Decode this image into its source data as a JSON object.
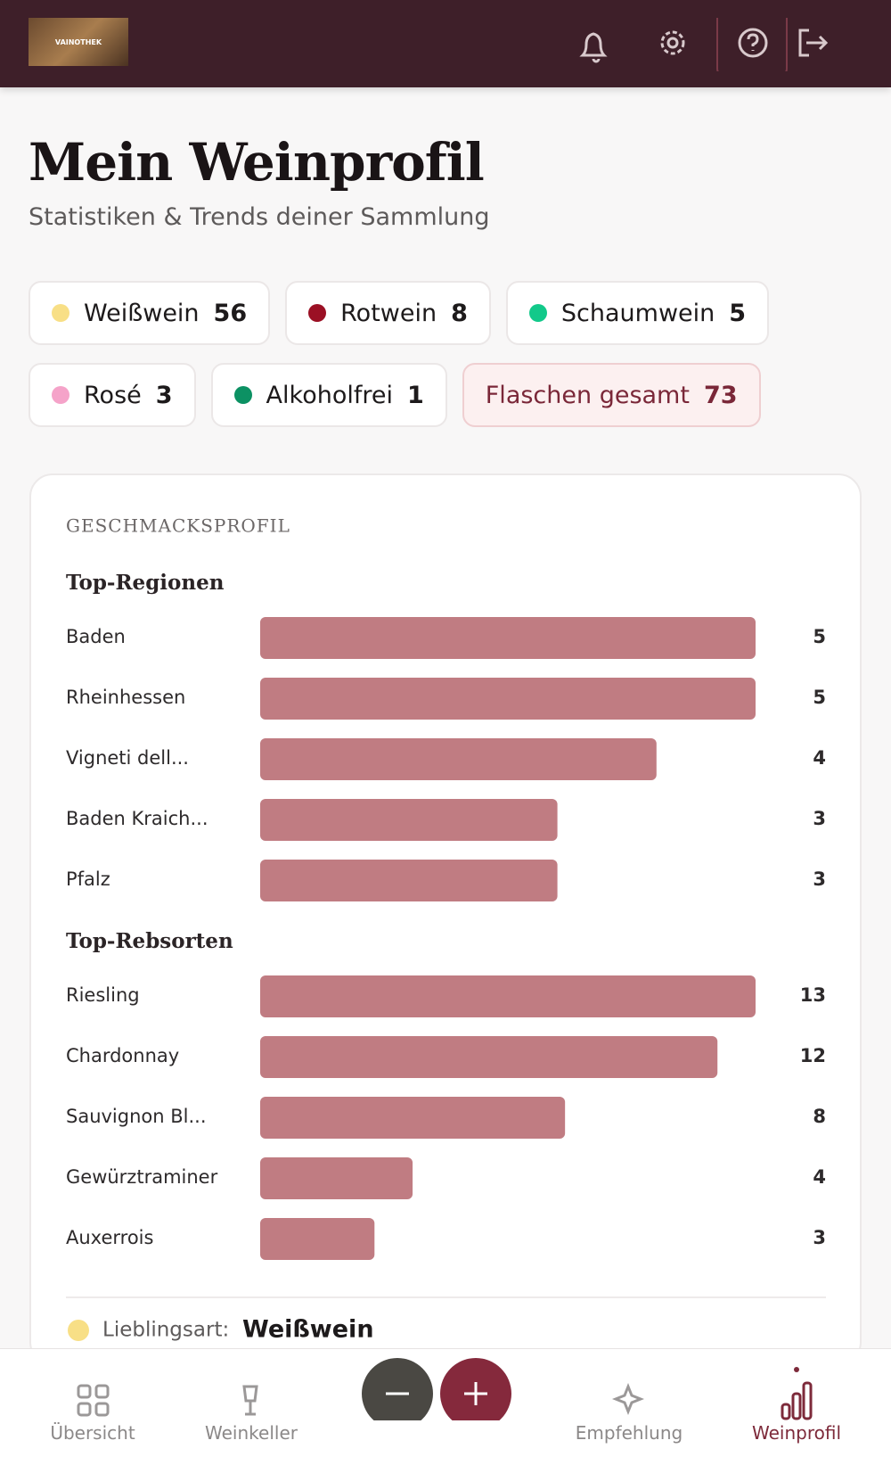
{
  "header": {
    "logo": "VAINOTHEK"
  },
  "page": {
    "title": "Mein Weinprofil",
    "subtitle": "Statistiken & Trends deiner Sammlung"
  },
  "chips": [
    {
      "label": "Weißwein",
      "count": 56,
      "color": "#f8df86"
    },
    {
      "label": "Rotwein",
      "count": 8,
      "color": "#9b1024"
    },
    {
      "label": "Schaumwein",
      "count": 5,
      "color": "#12c98a"
    },
    {
      "label": "Rosé",
      "count": 3,
      "color": "#f5a3c9"
    },
    {
      "label": "Alkoholfrei",
      "count": 1,
      "color": "#0c9163"
    }
  ],
  "total": {
    "label": "Flaschen gesamt",
    "count": 73
  },
  "profile": {
    "heading": "GESCHMACKSPROFIL",
    "favorite": {
      "label": "Lieblingsart:",
      "value": "Weißwein",
      "color": "#f8df86"
    }
  },
  "chart_data": [
    {
      "type": "bar",
      "title": "Top-Regionen",
      "categories": [
        "Baden",
        "Rheinhessen",
        "Vigneti dell...",
        "Baden Kraich...",
        "Pfalz"
      ],
      "values": [
        5,
        5,
        4,
        3,
        3
      ],
      "color": "#c07c82"
    },
    {
      "type": "bar",
      "title": "Top-Rebsorten",
      "categories": [
        "Riesling",
        "Chardonnay",
        "Sauvignon Bl...",
        "Gewürztraminer",
        "Auxerrois"
      ],
      "values": [
        13,
        12,
        8,
        4,
        3
      ],
      "color": "#c07c82"
    }
  ],
  "nav": [
    "Übersicht",
    "Weinkeller",
    "Empfehlung",
    "Weinprofil"
  ]
}
